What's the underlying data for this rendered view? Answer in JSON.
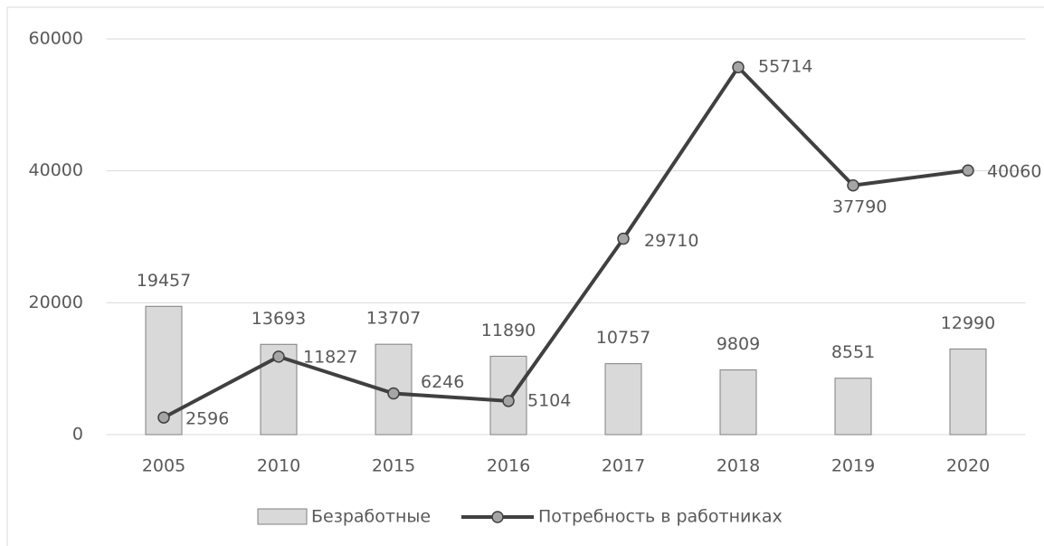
{
  "chart_data": {
    "type": "combo",
    "categories": [
      "2005",
      "2010",
      "2015",
      "2016",
      "2017",
      "2018",
      "2019",
      "2020"
    ],
    "series": [
      {
        "name": "Безработные",
        "type": "bar",
        "color": "#d9d9d9",
        "values": [
          19457,
          13693,
          13707,
          11890,
          10757,
          9809,
          8551,
          12990
        ]
      },
      {
        "name": "Потребность в работниках",
        "type": "line",
        "color": "#404040",
        "values": [
          2596,
          11827,
          6246,
          5104,
          29710,
          55714,
          37790,
          40060
        ]
      }
    ],
    "ylim": [
      0,
      60000
    ],
    "yticks": [
      0,
      20000,
      40000,
      60000
    ],
    "grid": true,
    "legend": "bottom"
  }
}
